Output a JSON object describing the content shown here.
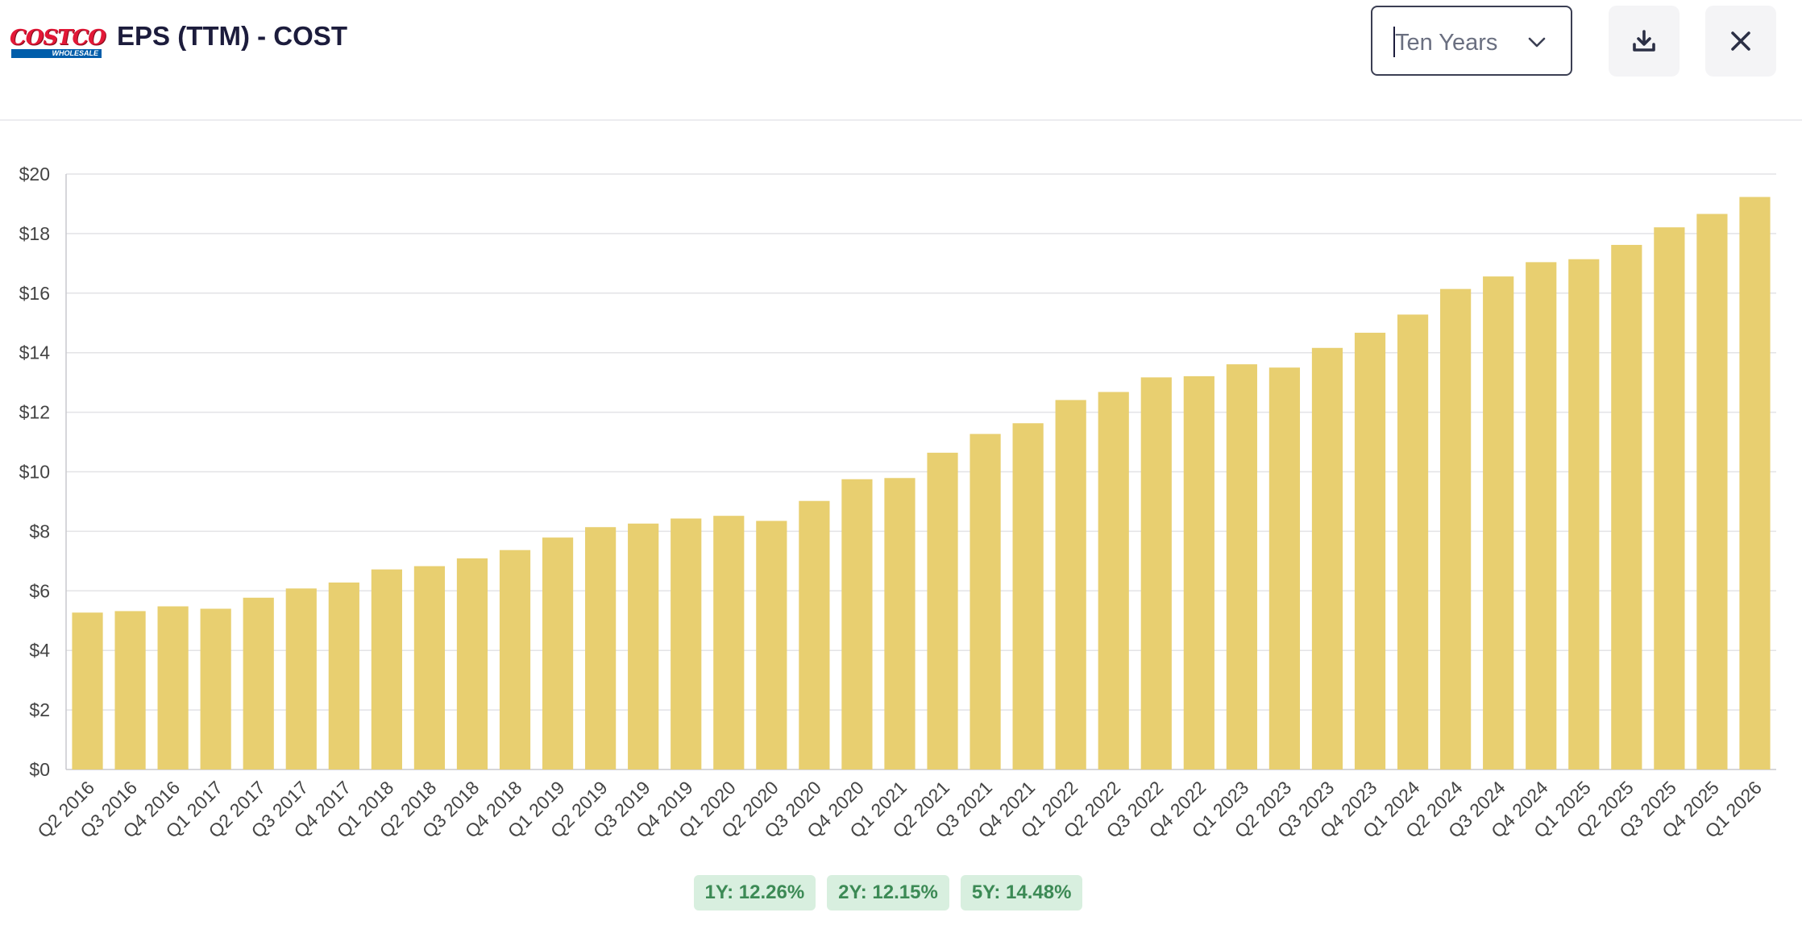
{
  "header": {
    "logo_text": "COSTCO",
    "logo_subtext": "WHOLESALE",
    "title": "EPS (TTM) - COST",
    "period_select": {
      "value": "Ten Years"
    },
    "icons": {
      "period_dropdown": "chevron-down-icon",
      "download": "download-icon",
      "close": "close-icon"
    }
  },
  "growth": [
    {
      "label": "1Y: 12.26%"
    },
    {
      "label": "2Y: 12.15%"
    },
    {
      "label": "5Y: 14.48%"
    }
  ],
  "colors": {
    "bar": "#e8cf70",
    "badge_bg": "#d8efdf",
    "badge_text": "#3c8a55",
    "grid": "#e3e3e6"
  },
  "chart_data": {
    "type": "bar",
    "title": "",
    "xlabel": "",
    "ylabel": "",
    "ylim": [
      0,
      20
    ],
    "yticks": [
      0,
      2,
      4,
      6,
      8,
      10,
      12,
      14,
      16,
      18,
      20
    ],
    "ytick_labels": [
      "$0",
      "$2",
      "$4",
      "$6",
      "$8",
      "$10",
      "$12",
      "$14",
      "$16",
      "$18",
      "$20"
    ],
    "grid": true,
    "categories": [
      "Q2 2016",
      "Q3 2016",
      "Q4 2016",
      "Q1 2017",
      "Q2 2017",
      "Q3 2017",
      "Q4 2017",
      "Q1 2018",
      "Q2 2018",
      "Q3 2018",
      "Q4 2018",
      "Q1 2019",
      "Q2 2019",
      "Q3 2019",
      "Q4 2019",
      "Q1 2020",
      "Q2 2020",
      "Q3 2020",
      "Q4 2020",
      "Q1 2021",
      "Q2 2021",
      "Q3 2021",
      "Q4 2021",
      "Q1 2022",
      "Q2 2022",
      "Q3 2022",
      "Q4 2022",
      "Q1 2023",
      "Q2 2023",
      "Q3 2023",
      "Q4 2023",
      "Q1 2024",
      "Q2 2024",
      "Q3 2024",
      "Q4 2024",
      "Q1 2025",
      "Q2 2025",
      "Q3 2025",
      "Q4 2025",
      "Q1 2026"
    ],
    "values": [
      5.27,
      5.32,
      5.48,
      5.4,
      5.77,
      6.08,
      6.28,
      6.72,
      6.83,
      7.09,
      7.37,
      7.79,
      8.14,
      8.26,
      8.43,
      8.52,
      8.35,
      9.02,
      9.75,
      9.79,
      10.64,
      11.27,
      11.63,
      12.41,
      12.68,
      13.17,
      13.21,
      13.61,
      13.5,
      14.16,
      14.67,
      15.28,
      16.14,
      16.56,
      17.04,
      17.14,
      17.62,
      18.21,
      18.66,
      19.23
    ]
  }
}
